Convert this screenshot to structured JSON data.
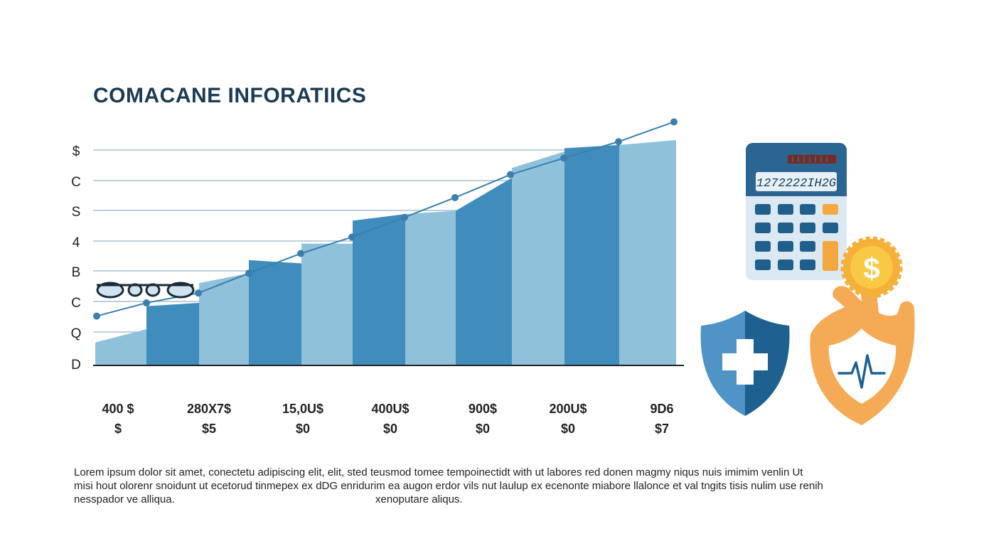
{
  "title": "COMACANE INFORATIICS",
  "colors": {
    "title": "#1c3b55",
    "bar_light": "#8fc1db",
    "bar_dark": "#3f8cbd",
    "line": "#3a7fae",
    "grid": "#a9c0cf",
    "calc_body": "#dce9f2",
    "calc_top": "#2b6592",
    "key_blue": "#1e5f8c",
    "key_orange": "#f3a940",
    "shield_light": "#4f93c7",
    "shield_dark": "#1e6190",
    "hand_orange": "#f5aa55",
    "coin": "#f2b233"
  },
  "chart_data": {
    "type": "area",
    "title": "COMACANE INFORATIICS",
    "y_tick_labels": [
      "$",
      "C",
      "S",
      "4",
      "B",
      "C",
      "Q",
      "D"
    ],
    "x_tick_labels": [
      {
        "line1": "400 $",
        "line2": "$"
      },
      {
        "line1": "280X7$",
        "line2": "$5"
      },
      {
        "line1": "15,0U$",
        "line2": "$0"
      },
      {
        "line1": "400U$",
        "line2": "$0"
      },
      {
        "line1": "900$",
        "line2": "$0"
      },
      {
        "line1": "200U$",
        "line2": "$0"
      },
      {
        "line1": "9D6",
        "line2": "$7"
      }
    ],
    "ylim": [
      0,
      7
    ],
    "bars": [
      {
        "start": 0.7,
        "end": 1.1
      },
      {
        "start": 1.8,
        "end": 1.9
      },
      {
        "start": 2.5,
        "end": 2.8
      },
      {
        "start": 3.2,
        "end": 3.1
      },
      {
        "start": 3.7,
        "end": 3.7
      },
      {
        "start": 4.4,
        "end": 4.6
      },
      {
        "start": 4.6,
        "end": 4.7
      },
      {
        "start": 4.7,
        "end": 5.7
      },
      {
        "start": 6.0,
        "end": 6.5
      },
      {
        "start": 6.6,
        "end": 6.7
      }
    ],
    "line_series": [
      1.5,
      1.9,
      2.2,
      2.8,
      3.4,
      3.9,
      4.5,
      5.1,
      5.8,
      6.3,
      6.8,
      7.4
    ],
    "grid": true
  },
  "icons": [
    "glasses-icon",
    "calculator-icon",
    "dollar-coin-icon",
    "medical-shield-icon",
    "hand-heartbeat-shield-icon"
  ],
  "calculator": {
    "display": "1272222IH2G"
  },
  "body_text": {
    "line1": "Lorem  ipsum  dolor  sit  amet,  conectetu adipiscing  elit,  elit,  sted  teusmod  tomee  tempoinectidt  with  ut  labores  red  donen  magmy  niqus  nuis  imimim  venlin   Ut",
    "line2": "misi  hout olorenr snoidunt ut ecetorud  tinmepex ex dDG enridurim  ea  augon  erdor  vils nut laulup  ex  ecenonte  miabore  llalonce  et  val  tngits  tisis  nulim  use  renih",
    "line3a": "nesspador  ve  alliqua.",
    "line3b": "xenoputare  aliqus."
  }
}
